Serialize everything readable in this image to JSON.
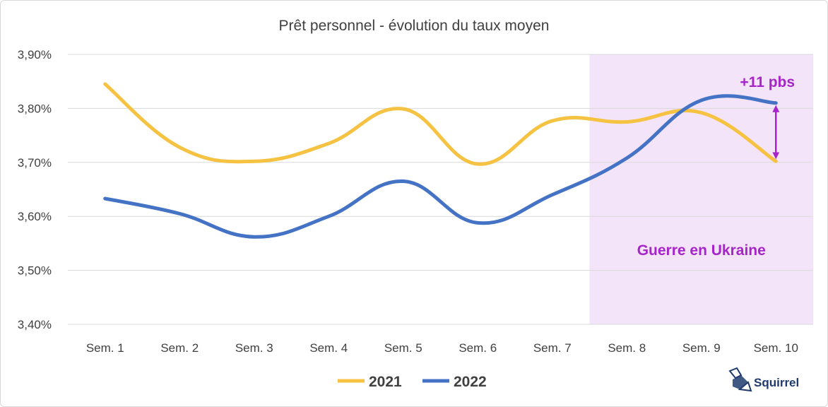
{
  "chart_data": {
    "type": "line",
    "title": "Prêt personnel - évolution du taux moyen",
    "categories": [
      "Sem. 1",
      "Sem. 2",
      "Sem. 3",
      "Sem. 4",
      "Sem. 5",
      "Sem. 6",
      "Sem. 7",
      "Sem. 8",
      "Sem. 9",
      "Sem. 10"
    ],
    "ylim": [
      3.4,
      3.9
    ],
    "yticks": [
      3.4,
      3.5,
      3.6,
      3.7,
      3.8,
      3.9
    ],
    "ytick_labels": [
      "3,40%",
      "3,50%",
      "3,60%",
      "3,70%",
      "3,80%",
      "3,90%"
    ],
    "grid": true,
    "legend_position": "bottom",
    "series": [
      {
        "name": "2021",
        "color": "#F5C242",
        "values": [
          3.845,
          3.728,
          3.702,
          3.735,
          3.799,
          3.697,
          3.777,
          3.775,
          3.792,
          3.702
        ]
      },
      {
        "name": "2022",
        "color": "#4472C4",
        "values": [
          3.633,
          3.605,
          3.562,
          3.6,
          3.665,
          3.588,
          3.64,
          3.708,
          3.815,
          3.81
        ]
      }
    ],
    "shaded_region": {
      "from_category": "Sem. 8",
      "label": "Guerre en Ukraine",
      "color": "#F3E4FA",
      "text_color": "#A724C9"
    },
    "annotation": {
      "text": "+11 pbs",
      "at_category": "Sem. 10",
      "color": "#A724C9"
    }
  },
  "brand": {
    "name": "Squirrel",
    "color": "#1F3B6E"
  }
}
